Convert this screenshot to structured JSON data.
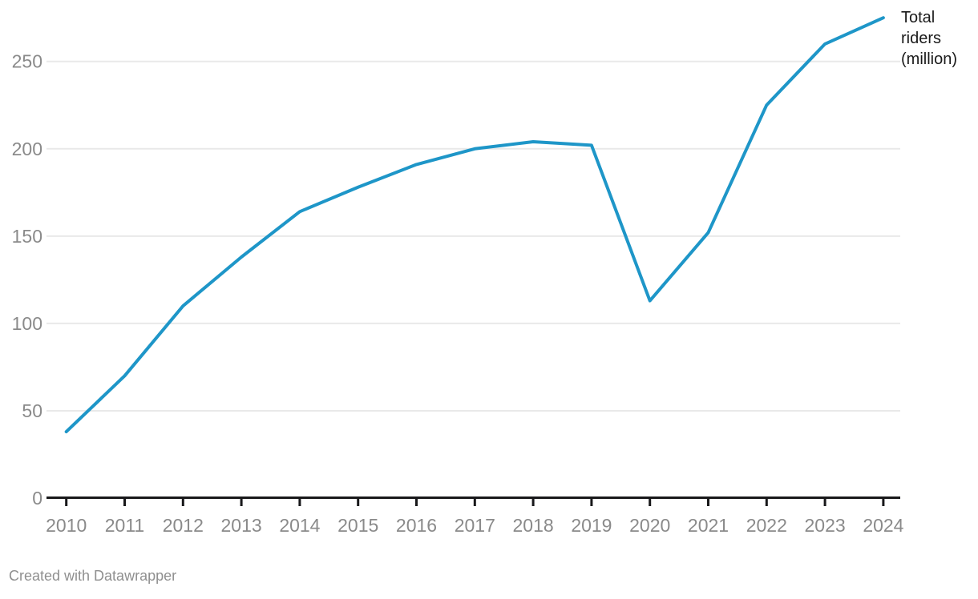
{
  "chart_data": {
    "type": "line",
    "title": "",
    "xlabel": "",
    "ylabel": "",
    "x": [
      2010,
      2011,
      2012,
      2013,
      2014,
      2015,
      2016,
      2017,
      2018,
      2019,
      2020,
      2021,
      2022,
      2023,
      2024
    ],
    "categories": [
      "2010",
      "2011",
      "2012",
      "2013",
      "2014",
      "2015",
      "2016",
      "2017",
      "2018",
      "2019",
      "2020",
      "2021",
      "2022",
      "2023",
      "2024"
    ],
    "series": [
      {
        "name": "Total riders (million)",
        "values": [
          38,
          70,
          110,
          138,
          164,
          178,
          191,
          200,
          204,
          202,
          113,
          152,
          225,
          260,
          275
        ],
        "color": "#1e96c8"
      }
    ],
    "ylim": [
      0,
      280
    ],
    "yticks": [
      0,
      50,
      100,
      150,
      200,
      250
    ],
    "grid": "horizontal",
    "legend_position": "line-end-label",
    "line_label_lines": [
      "Total",
      "riders",
      "(million)"
    ]
  },
  "attribution": {
    "text": "Created with Datawrapper"
  },
  "colors": {
    "line": "#1e96c8",
    "axis": "#18181a",
    "grid": "#e9e9e9",
    "tick_labels": "#8a8a8a",
    "annotation_text": "#1a1a1a",
    "attribution_text": "#8f8f8f",
    "background": "#ffffff"
  }
}
